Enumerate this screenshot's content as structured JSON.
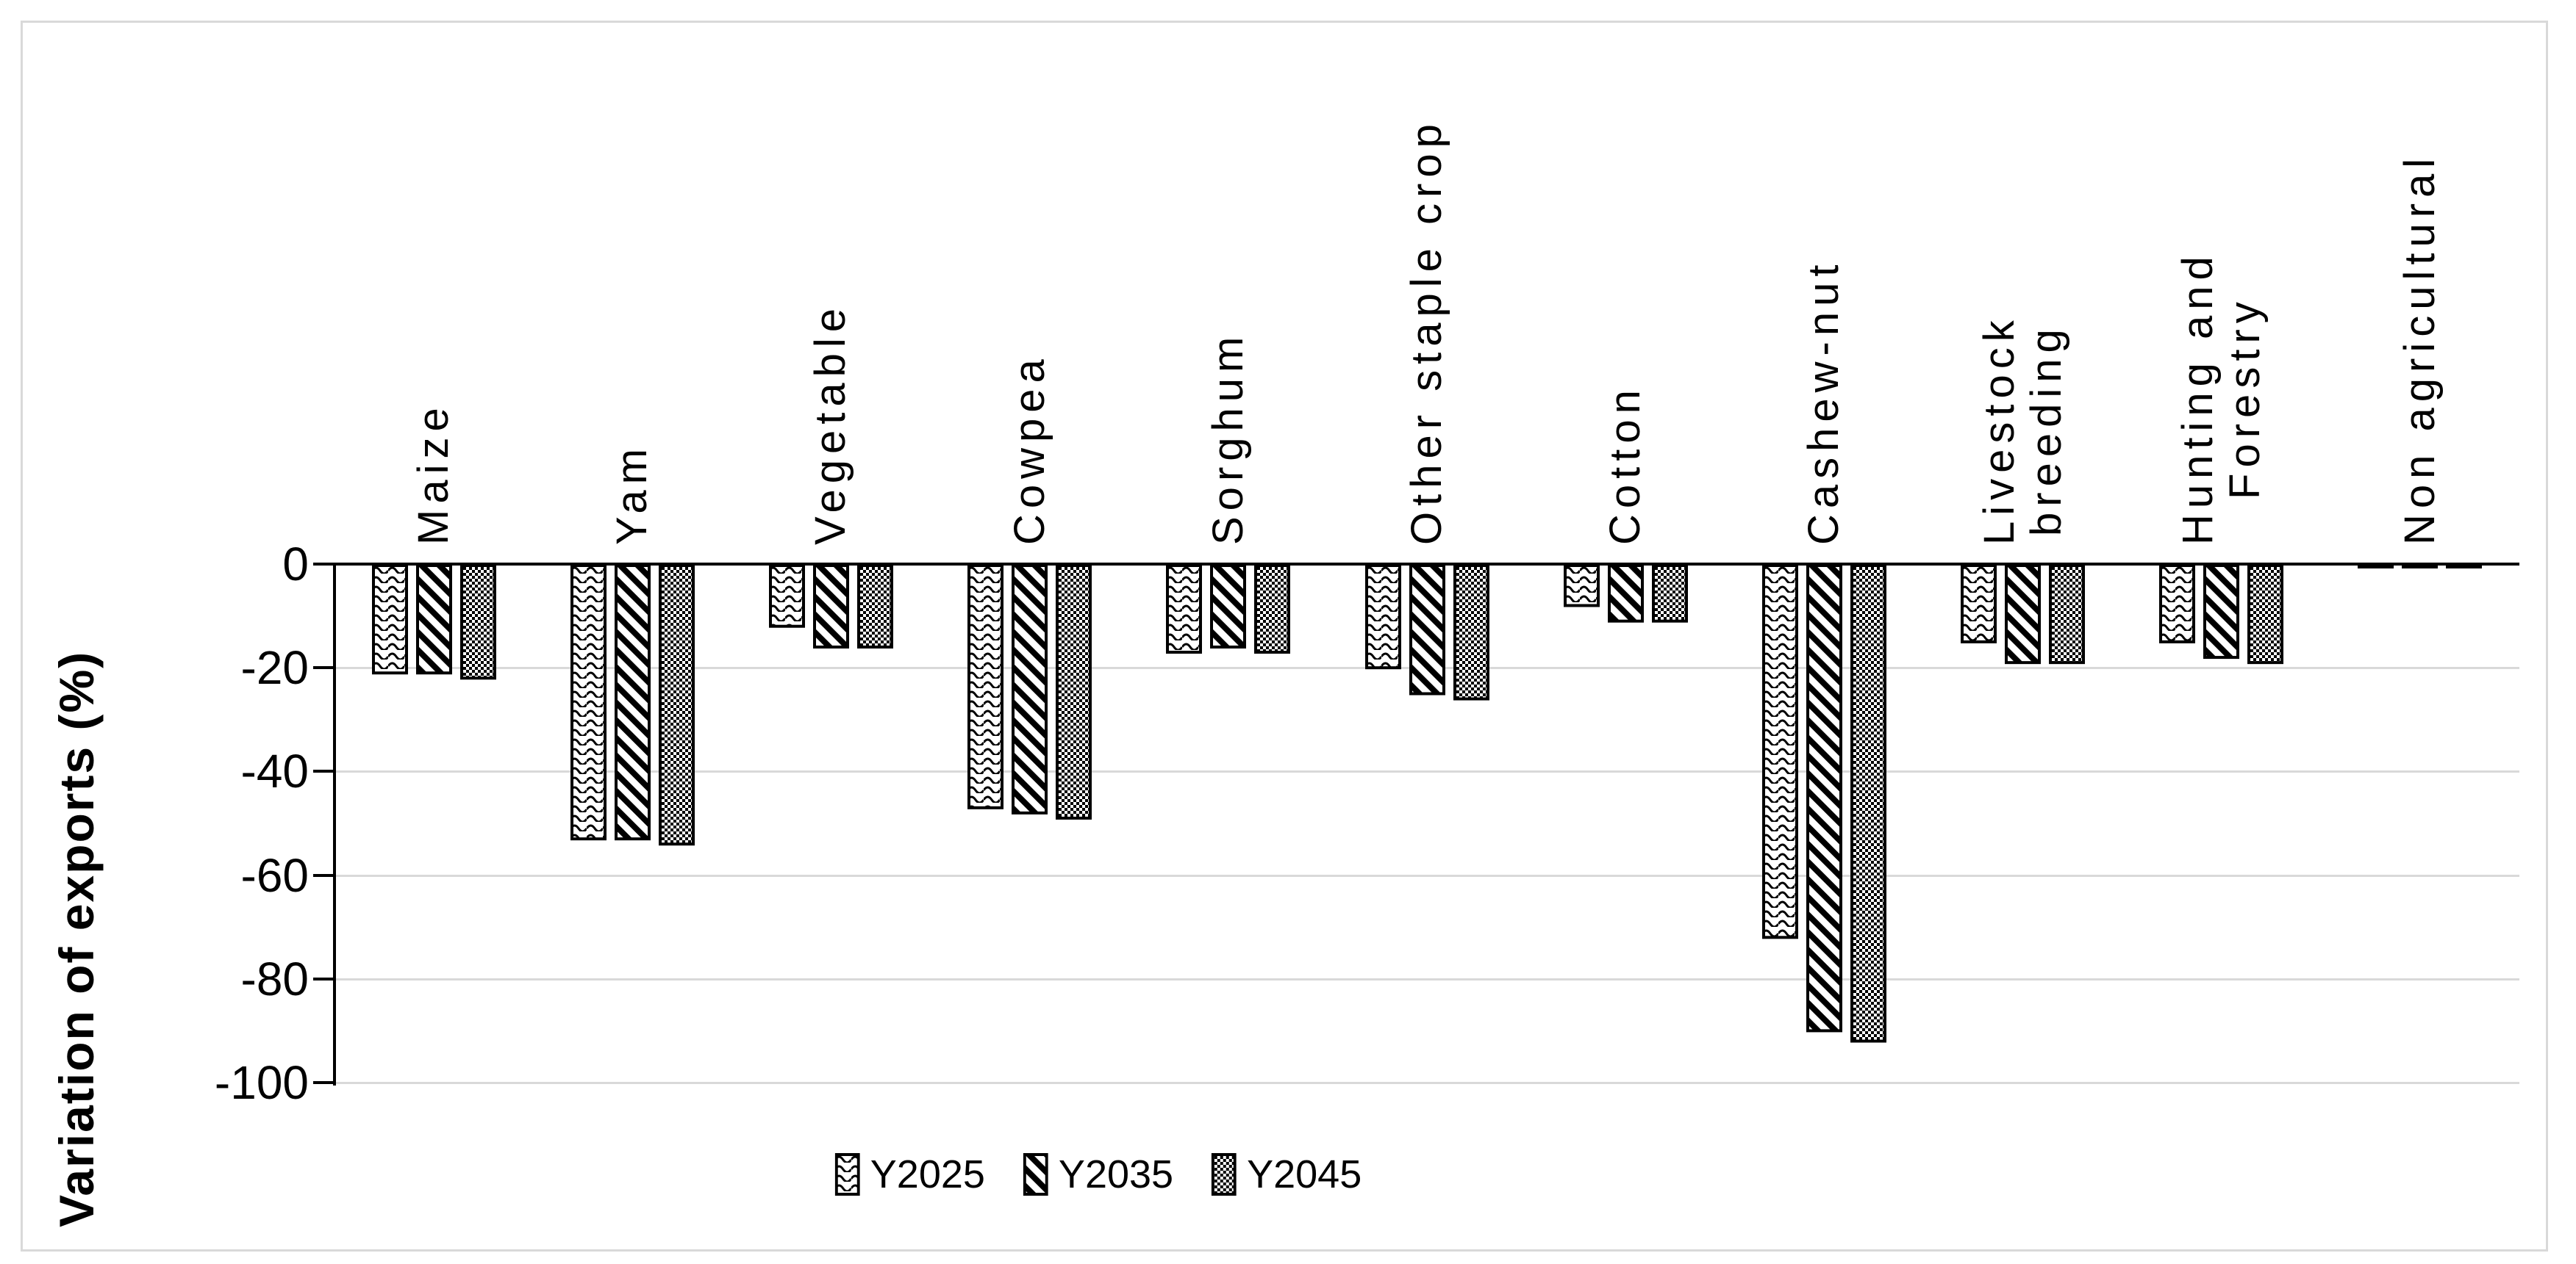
{
  "chart_data": {
    "type": "bar",
    "title": "",
    "ylabel": "Variation of exports (%)",
    "xlabel": "",
    "categories": [
      "Maize",
      "Yam",
      "Vegetable",
      "Cowpea",
      "Sorghum",
      "Other staple crop",
      "Cotton",
      "Cashew-nut",
      "Livestock\nbreeding",
      "Hunting and\nForestry",
      "Non agricultural"
    ],
    "series": [
      {
        "name": "Y2025",
        "pattern": "wavy-horizontal-hatch",
        "values": [
          -21,
          -53,
          -12,
          -47,
          -17,
          -20,
          -8,
          -72,
          -15,
          -15,
          -0.5
        ]
      },
      {
        "name": "Y2035",
        "pattern": "diagonal-stripe-hatch",
        "values": [
          -21,
          -53,
          -16,
          -48,
          -16,
          -25,
          -11,
          -90,
          -19,
          -18,
          -0.5
        ]
      },
      {
        "name": "Y2045",
        "pattern": "checker-dot-hatch",
        "values": [
          -22,
          -54,
          -16,
          -49,
          -17,
          -26,
          -11,
          -92,
          -19,
          -19,
          -0.5
        ]
      }
    ],
    "yticks": [
      0,
      -20,
      -40,
      -60,
      -80,
      -100
    ],
    "ylim": [
      -100,
      0
    ],
    "grid": "horizontal gridlines every 20 units",
    "legend_position": "bottom-center",
    "colors": {
      "bar_fill": "#ffffff",
      "bar_stroke": "#000000",
      "gridline": "#d9d9d9",
      "axis": "#000000",
      "chart_border": "#d9d9d9",
      "text": "#000000",
      "background": "#ffffff"
    }
  }
}
